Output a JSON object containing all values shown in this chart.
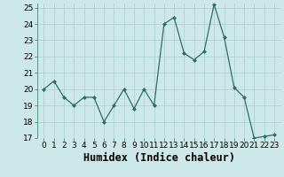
{
  "x": [
    0,
    1,
    2,
    3,
    4,
    5,
    6,
    7,
    8,
    9,
    10,
    11,
    12,
    13,
    14,
    15,
    16,
    17,
    18,
    19,
    20,
    21,
    22,
    23
  ],
  "y": [
    20.0,
    20.5,
    19.5,
    19.0,
    19.5,
    19.5,
    18.0,
    19.0,
    20.0,
    18.8,
    20.0,
    19.0,
    24.0,
    24.4,
    22.2,
    21.8,
    22.3,
    25.2,
    23.2,
    20.1,
    19.5,
    17.0,
    17.1,
    17.2
  ],
  "xlabel": "Humidex (Indice chaleur)",
  "ylim_min": 17,
  "ylim_max": 25,
  "yticks": [
    17,
    18,
    19,
    20,
    21,
    22,
    23,
    24,
    25
  ],
  "xticks": [
    0,
    1,
    2,
    3,
    4,
    5,
    6,
    7,
    8,
    9,
    10,
    11,
    12,
    13,
    14,
    15,
    16,
    17,
    18,
    19,
    20,
    21,
    22,
    23
  ],
  "line_color": "#2d6e65",
  "bg_color": "#cce8e8",
  "grid_color": "#aacece",
  "tick_fontsize": 6.5,
  "xlabel_fontsize": 8.5
}
